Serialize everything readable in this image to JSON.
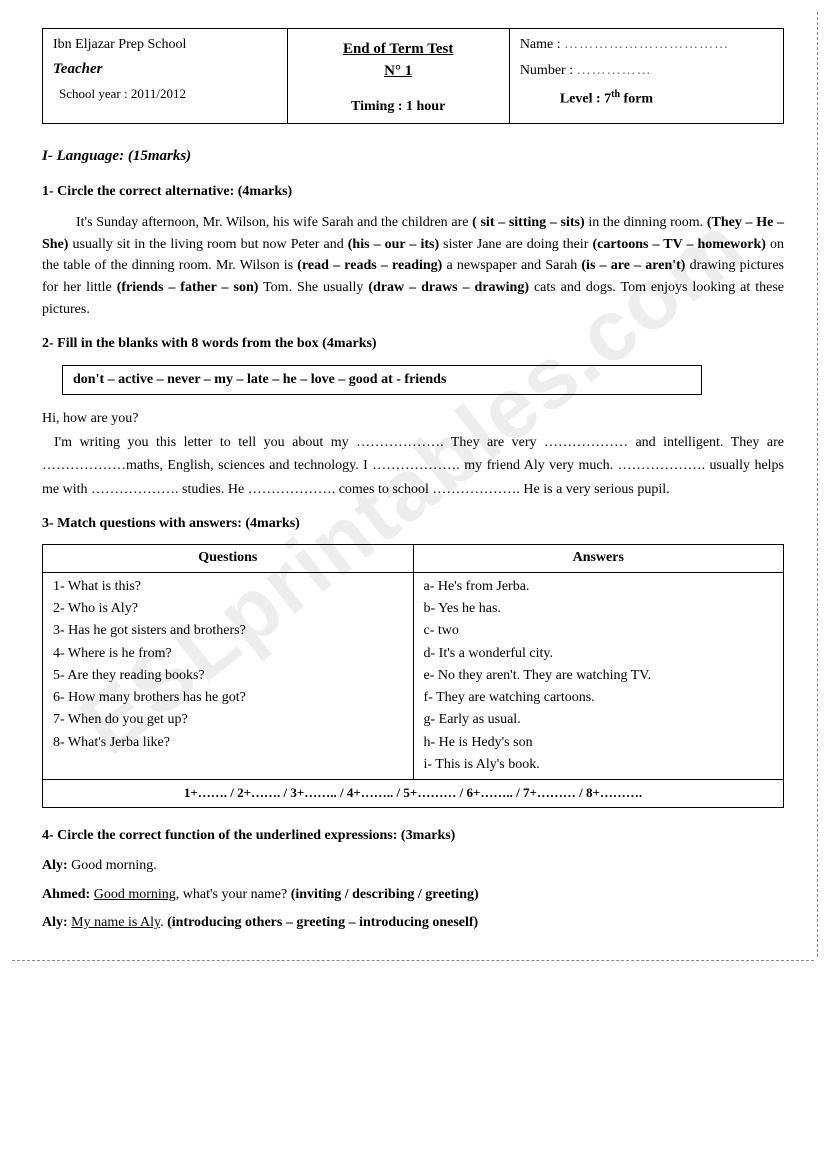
{
  "watermark": "ESLprintables.com",
  "header": {
    "school": "Ibn Eljazar Prep School",
    "teacher_label": "Teacher",
    "school_year": "School year : 2011/2012",
    "title_line1": "End of Term Test",
    "title_line2": "N° 1",
    "timing": "Timing : 1 hour",
    "name_label": "Name :",
    "name_dots": "……………………………",
    "number_label": "Number :",
    "number_dots": "……………",
    "level_prefix": "Level : 7",
    "level_suffix": " form"
  },
  "section": {
    "title": "I- Language: (15marks)"
  },
  "q1": {
    "title": "1- Circle the correct alternative: (4marks)",
    "text_parts": [
      "It's Sunday afternoon, Mr. Wilson, his wife Sarah and the children are ",
      "( sit – sitting – sits)",
      " in the dinning room. ",
      "(They – He – She)",
      " usually sit in the living room but now Peter and ",
      "(his – our – its)",
      " sister Jane are doing their ",
      "(cartoons – TV – homework)",
      " on the table of the dinning room. Mr. Wilson is ",
      "(read – reads – reading)",
      " a newspaper and Sarah ",
      "(is – are – aren't)",
      " drawing pictures for her little ",
      "(friends – father – son)",
      " Tom. She usually ",
      "(draw – draws – drawing)",
      " cats and dogs. Tom enjoys looking at these pictures."
    ]
  },
  "q2": {
    "title": "2- Fill in the blanks with 8 words from the box (4marks)",
    "box": "don't – active – never – my – late – he – love – good at - friends",
    "line1": "Hi, how are you?",
    "line2a": "I'm writing you this letter to tell you about my ………………. They are very ……………… and intelligent. They are ………………maths, English, sciences and technology. I ………………. my friend Aly very much. ………………. usually helps me with ………………. studies. He ………………. comes to school ………………. He is a very serious pupil."
  },
  "q3": {
    "title": "3- Match questions with answers: (4marks)",
    "col1_head": "Questions",
    "col2_head": "Answers",
    "questions": [
      "1- What is this?",
      "2- Who is Aly?",
      "3- Has he got sisters and brothers?",
      "4- Where is he from?",
      "5- Are they reading books?",
      "6- How many brothers has he got?",
      "7- When do you get up?",
      "8- What's Jerba like?"
    ],
    "answers": [
      "a- He's from Jerba.",
      "b- Yes he has.",
      "c- two",
      "d- It's a wonderful city.",
      "e- No they aren't. They are watching TV.",
      "f- They are watching cartoons.",
      "g- Early as usual.",
      "h- He is Hedy's son",
      "i- This is Aly's book."
    ],
    "answer_row": "1+……. / 2+……. / 3+…….. / 4+…….. / 5+……… / 6+…….. / 7+……… / 8+………."
  },
  "q4": {
    "title": "4- Circle the correct function of the underlined expressions: (3marks)",
    "lines": [
      {
        "speaker": "Aly:",
        "pre": " ",
        "underlined": "",
        "post": "Good morning.",
        "opts": ""
      },
      {
        "speaker": "Ahmed:",
        "pre": " ",
        "underlined": "Good morning",
        "post": ", what's your name? ",
        "opts": "(inviting / describing / greeting)"
      },
      {
        "speaker": "Aly:",
        "pre": " ",
        "underlined": "My name is Aly",
        "post": ". ",
        "opts": "(introducing others – greeting – introducing oneself)"
      }
    ]
  }
}
